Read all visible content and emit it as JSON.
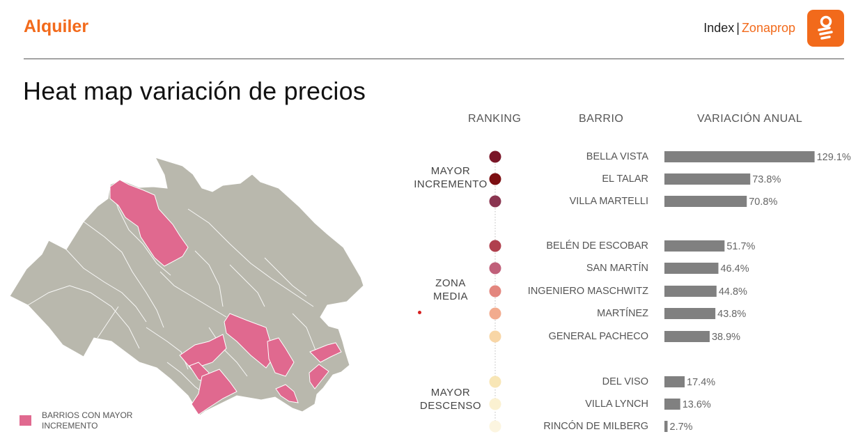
{
  "header": {
    "section_title": "Alquiler",
    "index_label": "Index",
    "separator": "|",
    "brand_name": "Zonaprop",
    "logo_icon": "zonaprop-logo-icon"
  },
  "page_title": "Heat map variación de precios",
  "legend": {
    "label": "BARRIOS CON MAYOR INCREMENTO",
    "color": "#e0698f"
  },
  "chart_data": {
    "type": "bar",
    "orientation": "horizontal",
    "columns": {
      "ranking": "RANKING",
      "barrio": "BARRIO",
      "variation": "VARIACIÓN ANUAL"
    },
    "groups": [
      {
        "label_line1": "MAYOR",
        "label_line2": "INCREMENTO"
      },
      {
        "label_line1": "ZONA",
        "label_line2": "MEDIA"
      },
      {
        "label_line1": "MAYOR",
        "label_line2": "DESCENSO"
      }
    ],
    "categories": [
      "BELLA VISTA",
      "EL TALAR",
      "VILLA MARTELLI",
      "BELÉN DE ESCOBAR",
      "SAN MARTÍN",
      "INGENIERO MASCHWITZ",
      "MARTÍNEZ",
      "GENERAL PACHECO",
      "DEL VISO",
      "VILLA LYNCH",
      "RINCÓN DE MILBERG"
    ],
    "values": [
      129.1,
      73.8,
      70.8,
      51.7,
      46.4,
      44.8,
      43.8,
      38.9,
      17.4,
      13.6,
      2.7
    ],
    "value_labels": [
      "129.1%",
      "73.8%",
      "70.8%",
      "51.7%",
      "46.4%",
      "44.8%",
      "43.8%",
      "38.9%",
      "17.4%",
      "13.6%",
      "2.7%"
    ],
    "group_index": [
      0,
      0,
      0,
      1,
      1,
      1,
      1,
      1,
      2,
      2,
      2
    ],
    "dot_colors": [
      "#7a1628",
      "#7c0f12",
      "#8a3550",
      "#b0404e",
      "#c0607a",
      "#e3867e",
      "#f2ab8e",
      "#f8d6a6",
      "#f8e6b6",
      "#fbf1d1",
      "#fcf5e0"
    ],
    "bar_color": "#808080"
  }
}
